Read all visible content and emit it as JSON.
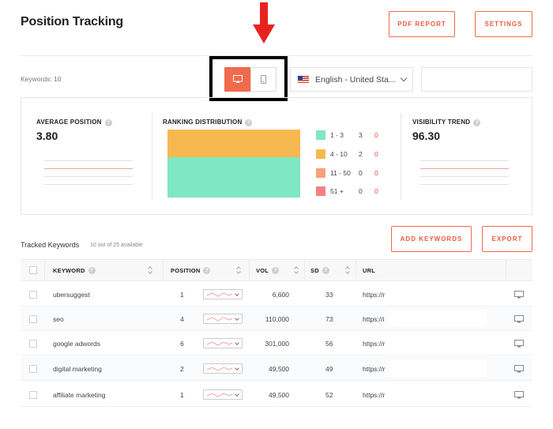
{
  "header": {
    "title": "Position Tracking",
    "pdf_report": "PDF REPORT",
    "settings": "SETTINGS"
  },
  "toolbar": {
    "keywords_count": "Keywords: 10",
    "language": "English - United Sta...",
    "devices": {
      "selected": "desktop",
      "options": [
        "desktop-icon",
        "mobile-icon"
      ]
    }
  },
  "stats": {
    "average_position": {
      "label": "AVERAGE POSITION",
      "value": "3.80"
    },
    "ranking_distribution": {
      "label": "RANKING DISTRIBUTION",
      "buckets": [
        {
          "range": "1 - 3",
          "count": "3",
          "change": "0",
          "color": "#7fe7c4"
        },
        {
          "range": "4 - 10",
          "count": "2",
          "change": "0",
          "color": "#f7b850"
        },
        {
          "range": "11 - 50",
          "count": "0",
          "change": "0",
          "color": "#f8a07a"
        },
        {
          "range": "51 +",
          "count": "0",
          "change": "0",
          "color": "#f48080"
        }
      ]
    },
    "visibility_trend": {
      "label": "VISIBILITY TREND",
      "value": "96.30"
    }
  },
  "tracked": {
    "label": "Tracked Keywords",
    "available": "10 out of 25 available",
    "add_keywords": "ADD KEYWORDS",
    "export": "EXPORT"
  },
  "table": {
    "columns": {
      "keyword": "KEYWORD",
      "position": "POSITION",
      "vol": "VOL",
      "sd": "SD",
      "url": "URL"
    },
    "rows": [
      {
        "keyword": "ubersuggest",
        "position": "1",
        "vol": "6,600",
        "sd": "33",
        "url": "https://r"
      },
      {
        "keyword": "seo",
        "position": "4",
        "vol": "110,000",
        "sd": "73",
        "url": "https://i"
      },
      {
        "keyword": "google adwords",
        "position": "6",
        "vol": "301,000",
        "sd": "56",
        "url": "https://r"
      },
      {
        "keyword": "digital marketing",
        "position": "2",
        "vol": "49,500",
        "sd": "49",
        "url": "https://r"
      },
      {
        "keyword": "affiliate marketing",
        "position": "1",
        "vol": "49,500",
        "sd": "52",
        "url": "https://r"
      }
    ]
  },
  "colors": {
    "accent": "#f06a4c",
    "spark_red": "#f2a4a0",
    "spark_gray": "#e2e2e2"
  }
}
